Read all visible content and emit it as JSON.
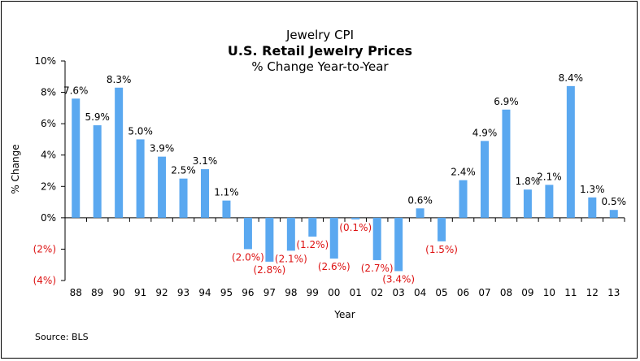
{
  "title": "Jewelry CPI",
  "subtitle": "U.S. Retail Jewelry Prices",
  "subtitle2": "% Change Year-to-Year",
  "source": "Source:  BLS",
  "colors": {
    "bar": "#5aa8f0",
    "negative_label": "#dd1111",
    "text": "#000000"
  },
  "chart_data": {
    "type": "bar",
    "xlabel": "Year",
    "ylabel": "% Change",
    "ylim": [
      -4,
      10
    ],
    "yticks": [
      -4,
      -2,
      0,
      2,
      4,
      6,
      8,
      10
    ],
    "ytick_labels": [
      "(4%)",
      "(2%)",
      "0%",
      "2%",
      "4%",
      "6%",
      "8%",
      "10%"
    ],
    "categories": [
      "88",
      "89",
      "90",
      "91",
      "92",
      "93",
      "94",
      "95",
      "96",
      "97",
      "98",
      "99",
      "00",
      "01",
      "02",
      "03",
      "04",
      "05",
      "06",
      "07",
      "08",
      "09",
      "10",
      "11",
      "12",
      "13"
    ],
    "values": [
      7.6,
      5.9,
      8.3,
      5.0,
      3.9,
      2.5,
      3.1,
      1.1,
      -2.0,
      -2.8,
      -2.1,
      -1.2,
      -2.6,
      -0.1,
      -2.7,
      -3.4,
      0.6,
      -1.5,
      2.4,
      4.9,
      6.9,
      1.8,
      2.1,
      8.4,
      1.3,
      0.5
    ],
    "data_labels": [
      "7.6%",
      "5.9%",
      "8.3%",
      "5.0%",
      "3.9%",
      "2.5%",
      "3.1%",
      "1.1%",
      "(2.0%)",
      "(2.8%)",
      "(2.1%)",
      "(1.2%)",
      "(2.6%)",
      "(0.1%)",
      "(2.7%)",
      "(3.4%)",
      "0.6%",
      "(1.5%)",
      "2.4%",
      "4.9%",
      "6.9%",
      "1.8%",
      "2.1%",
      "8.4%",
      "1.3%",
      "0.5%"
    ],
    "grid": false,
    "legend": "none"
  }
}
